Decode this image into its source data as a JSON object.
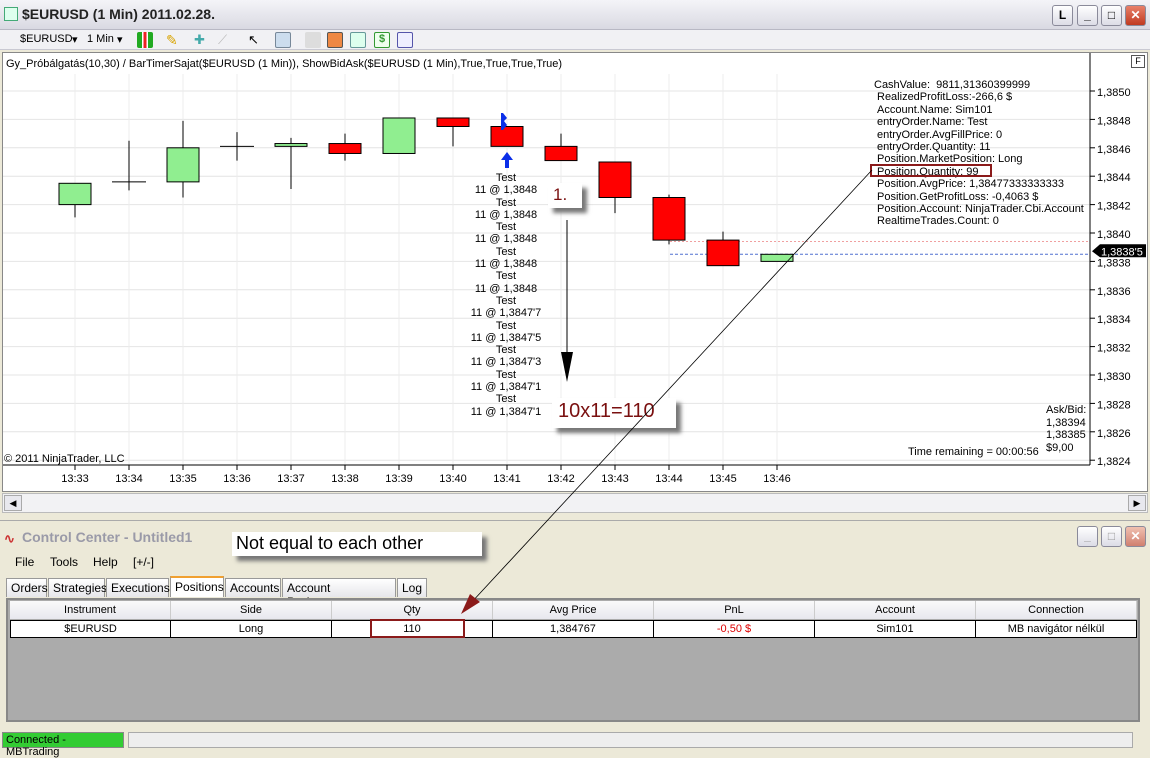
{
  "window": {
    "title": "$EURUSD (1 Min)  2011.02.28.",
    "buttons": [
      "L",
      "_",
      "□",
      "✕"
    ]
  },
  "toolbar": {
    "instrument": "$EURUSD",
    "interval": "1 Min",
    "icons": [
      "candlestick-icon",
      "pencil-icon",
      "add-indicator-icon",
      "remove-indicator-icon",
      "pointer-icon",
      "zoom-icon",
      "bars-icon",
      "strategy-icon",
      "chart-icon",
      "dollar-icon",
      "properties-icon"
    ]
  },
  "chart": {
    "indicator_label": "Gy_Próbálgatás(10,30) / BarTimerSajat($EURUSD (1 Min)), ShowBidAsk($EURUSD (1 Min),True,True,True,True)",
    "copyright": "© 2011 NinjaTrader, LLC",
    "f_button": "F",
    "info_lines": [
      "CashValue:  9811,31360399999",
      "RealizedProfitLoss:-266,6 $",
      "Account.Name: Sim101",
      "entryOrder.Name: Test",
      "entryOrder.AvgFillPrice: 0",
      "entryOrder.Quantity: 11",
      "Position.MarketPosition: Long",
      "Position.Quantity: 99",
      "Position.AvgPrice: 1,38477333333333",
      "Position.GetProfitLoss: -0,4063 $",
      "Position.Account: NinjaTrader.Cbi.Account",
      "RealtimeTrades.Count: 0"
    ],
    "trade_labels": [
      "Test",
      "11 @ 1,3848",
      "Test",
      "11 @ 1,3848",
      "Test",
      "11 @ 1,3848",
      "Test",
      "11 @ 1,3848",
      "Test",
      "11 @ 1,3848",
      "Test",
      "11 @ 1,3847'7",
      "Test",
      "11 @ 1,3847'5",
      "Test",
      "11 @ 1,3847'3",
      "Test",
      "11 @ 1,3847'1",
      "Test",
      "11 @ 1,3847'1"
    ],
    "ask_bid_label": "Ask/Bid:",
    "ask": "1,38394",
    "bid": "1,38385",
    "spread": "$9,00",
    "time_remaining": "Time remaining = 00:00:56",
    "last_price": "1,3838'5",
    "annotations": {
      "step": "1.",
      "calc": "10x11=110",
      "note": "Not equal to each other"
    }
  },
  "chart_data": {
    "type": "candlestick",
    "categories": [
      "13:33",
      "13:34",
      "13:35",
      "13:36",
      "13:37",
      "13:38",
      "13:39",
      "13:40",
      "13:41",
      "13:42",
      "13:43",
      "13:44",
      "13:45",
      "13:46"
    ],
    "open": [
      1.3842,
      1.38436,
      1.38436,
      1.38461,
      1.38461,
      1.38463,
      1.38456,
      1.38481,
      1.38475,
      1.38461,
      1.3845,
      1.38425,
      1.38395,
      1.3838
    ],
    "high": [
      1.38435,
      1.38465,
      1.38479,
      1.38471,
      1.38467,
      1.3847,
      1.38481,
      1.38481,
      1.38475,
      1.3847,
      1.3845,
      1.38427,
      1.38401,
      1.38385
    ],
    "low": [
      1.38411,
      1.3843,
      1.38425,
      1.38451,
      1.38431,
      1.38451,
      1.38456,
      1.38461,
      1.38461,
      1.38451,
      1.38414,
      1.38392,
      1.38377,
      1.3838
    ],
    "close": [
      1.38435,
      1.38436,
      1.3846,
      1.38461,
      1.38463,
      1.38456,
      1.38481,
      1.38475,
      1.38461,
      1.38451,
      1.38425,
      1.38395,
      1.38377,
      1.38385
    ],
    "yticks": [
      "1,3850",
      "1,3848",
      "1,3846",
      "1,3844",
      "1,3842",
      "1,3840",
      "1,3838",
      "1,3836",
      "1,3834",
      "1,3832",
      "1,3830",
      "1,3828",
      "1,3826",
      "1,3824"
    ],
    "ylim": [
      1.38235,
      1.38515
    ],
    "ask_line": 1.38394,
    "bid_line": 1.38385,
    "up_color": "#90ee90",
    "down_color": "#ff0000",
    "grid": true
  },
  "control_center": {
    "title": "Control Center - Untitled1",
    "menu": [
      "File",
      "Tools",
      "Help",
      "[+/-]"
    ],
    "tabs": [
      "Orders",
      "Strategies",
      "Executions",
      "Positions",
      "Accounts",
      "Account Performance",
      "Log"
    ],
    "active_tab": "Positions",
    "columns": [
      "Instrument",
      "Side",
      "Qty",
      "Avg Price",
      "PnL",
      "Account",
      "Connection"
    ],
    "rows": [
      [
        "$EURUSD",
        "Long",
        "110",
        "1,384767",
        "-0,50 $",
        "Sim101",
        "MB navigátor nélkül"
      ]
    ],
    "status": "Connected - MBTrading"
  }
}
